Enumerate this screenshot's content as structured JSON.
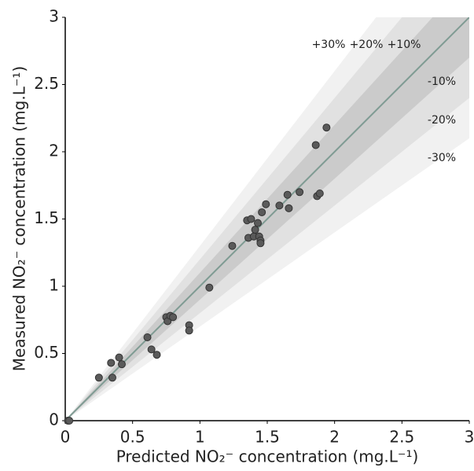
{
  "chart_data": {
    "type": "scatter",
    "xlabel": "Predicted NO₂⁻ concentration (mg.L⁻¹)",
    "ylabel": "Measured NO₂⁻ concentration (mg.L⁻¹)",
    "x": [
      0.02,
      0.03,
      0.25,
      0.34,
      0.35,
      0.4,
      0.42,
      0.61,
      0.64,
      0.68,
      0.75,
      0.76,
      0.78,
      0.8,
      0.92,
      0.92,
      1.07,
      1.24,
      1.35,
      1.36,
      1.38,
      1.4,
      1.41,
      1.43,
      1.44,
      1.45,
      1.45,
      1.46,
      1.49,
      1.59,
      1.65,
      1.66,
      1.74,
      1.86,
      1.87,
      1.89,
      1.94
    ],
    "values": [
      0.0,
      0.0,
      0.32,
      0.43,
      0.32,
      0.47,
      0.42,
      0.62,
      0.53,
      0.49,
      0.77,
      0.74,
      0.78,
      0.77,
      0.71,
      0.67,
      0.99,
      1.3,
      1.49,
      1.36,
      1.5,
      1.37,
      1.42,
      1.47,
      1.37,
      1.34,
      1.32,
      1.55,
      1.61,
      1.6,
      1.68,
      1.58,
      1.7,
      2.05,
      1.67,
      1.69,
      2.18
    ],
    "color": "#5a5a5a",
    "bands": [
      30,
      20,
      10
    ],
    "band_colors": [
      "#f1f1f1",
      "#e1e1e1",
      "#cbcbcb"
    ],
    "line_color": "#7f9b93",
    "annotations": [
      "+30%",
      "+20%",
      "+10%",
      "-10%",
      "-20%",
      "-30%"
    ],
    "xlim": [
      0,
      3
    ],
    "ylim": [
      0,
      3
    ],
    "xticks": [
      0,
      0.5,
      1,
      1.5,
      2,
      2.5,
      3
    ],
    "yticks": [
      0,
      0.5,
      1,
      1.5,
      2,
      2.5,
      3
    ]
  }
}
